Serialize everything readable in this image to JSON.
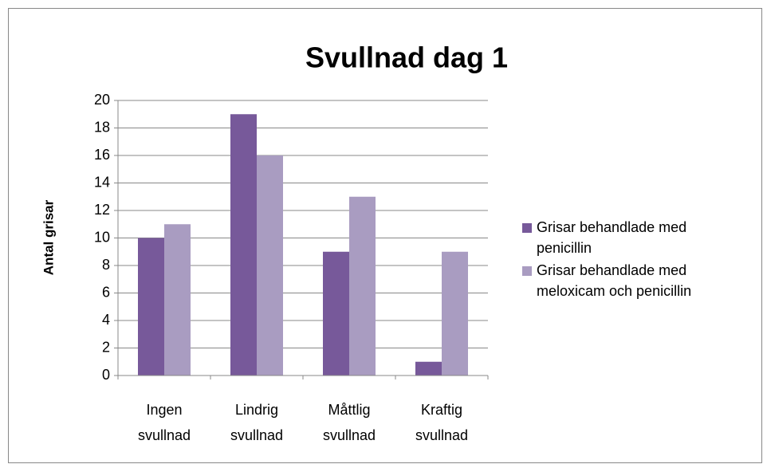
{
  "chart_data": {
    "type": "bar",
    "title": "Svullnad dag 1",
    "y_label": "Antal grisar",
    "categories": [
      "Ingen svullnad",
      "Lindrig svullnad",
      "Måttlig svullnad",
      "Kraftig svullnad"
    ],
    "series": [
      {
        "name": "Grisar behandlade med penicillin",
        "color": "#77599a",
        "values": [
          10,
          19,
          9,
          1
        ]
      },
      {
        "name": "Grisar behandlade med meloxicam och penicillin",
        "color": "#a99cc1",
        "values": [
          11,
          16,
          13,
          9
        ]
      }
    ],
    "ylim": [
      0,
      20
    ],
    "yticks": [
      0,
      2,
      4,
      6,
      8,
      10,
      12,
      14,
      16,
      18,
      20
    ],
    "grid": true,
    "legend": "right"
  }
}
